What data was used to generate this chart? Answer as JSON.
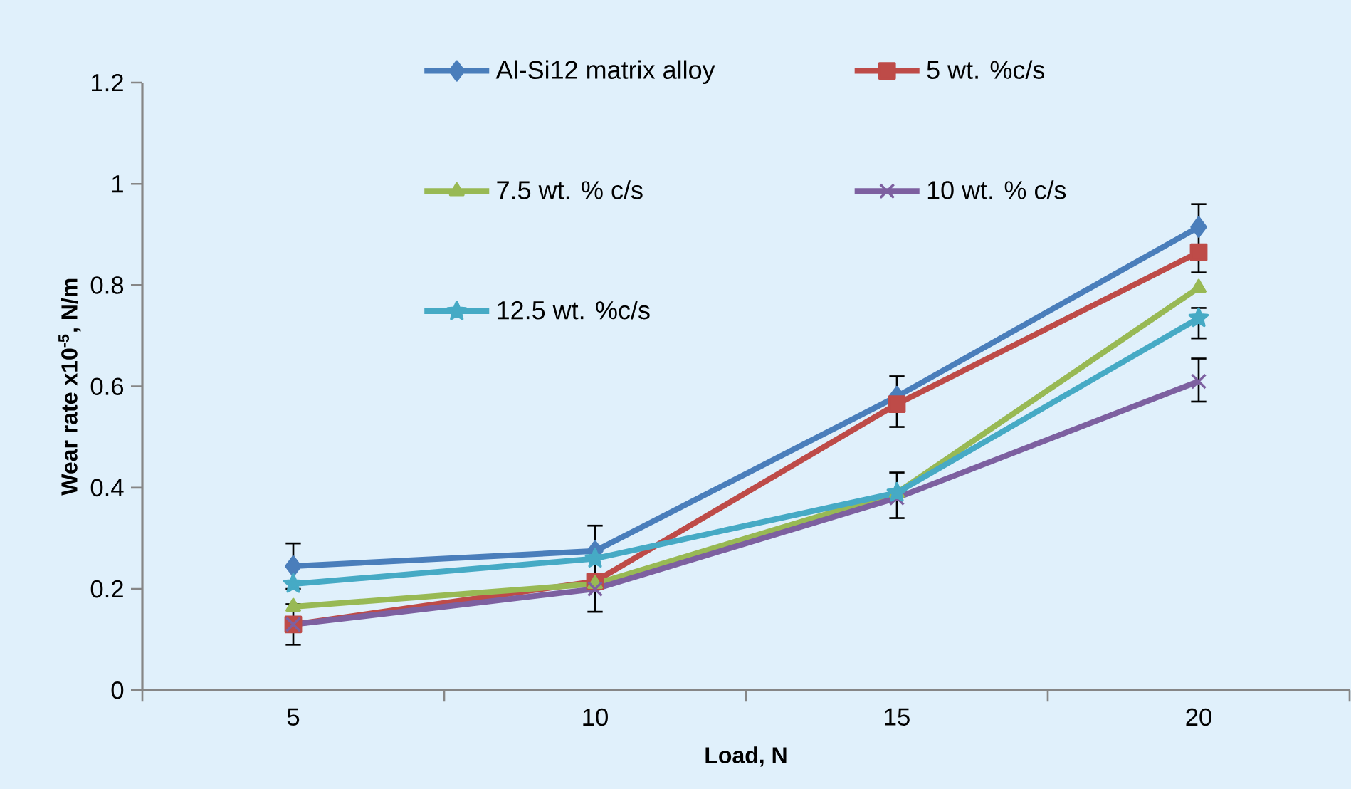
{
  "chart_data": {
    "type": "line",
    "xlabel": "Load, N",
    "ylabel": "Wear rate x10$^{-5}$, N/m",
    "categories": [
      "5",
      "10",
      "15",
      "20"
    ],
    "ylim": [
      0,
      1.2
    ],
    "yticks": [
      0,
      0.2,
      0.4,
      0.6,
      0.8,
      1,
      1.2
    ],
    "grid": false,
    "legend": "top",
    "line_style": "solid",
    "series": [
      {
        "name": "Al-Si12 matrix alloy",
        "color": "#4a7ebb",
        "marker": "diamond",
        "values": [
          0.245,
          0.275,
          0.58,
          0.915
        ],
        "errors": [
          [
            0.2,
            0.29
          ],
          [
            0.155,
            0.325
          ],
          [
            0.52,
            0.62
          ],
          [
            0.825,
            0.96
          ]
        ]
      },
      {
        "name": "5 wt. %c/s",
        "color": "#be4b48",
        "marker": "square",
        "values": [
          0.13,
          0.215,
          0.565,
          0.865
        ],
        "errors": [
          [
            0.09,
            0.17
          ],
          null,
          null,
          null
        ]
      },
      {
        "name": "7.5 wt. % c/s",
        "color": "#98b954",
        "marker": "triangle",
        "values": [
          0.165,
          0.21,
          0.39,
          0.795
        ]
      },
      {
        "name": "10 wt. % c/s",
        "color": "#7d60a0",
        "marker": "cross",
        "values": [
          0.13,
          0.2,
          0.38,
          0.61
        ],
        "errors": [
          null,
          null,
          [
            0.34,
            0.43
          ],
          [
            0.57,
            0.655
          ]
        ]
      },
      {
        "name": "12.5 wt. %c/s",
        "color": "#46aac5",
        "marker": "star",
        "values": [
          0.21,
          0.26,
          0.39,
          0.735
        ],
        "errors": [
          null,
          null,
          null,
          [
            0.695,
            0.755
          ]
        ]
      }
    ]
  }
}
